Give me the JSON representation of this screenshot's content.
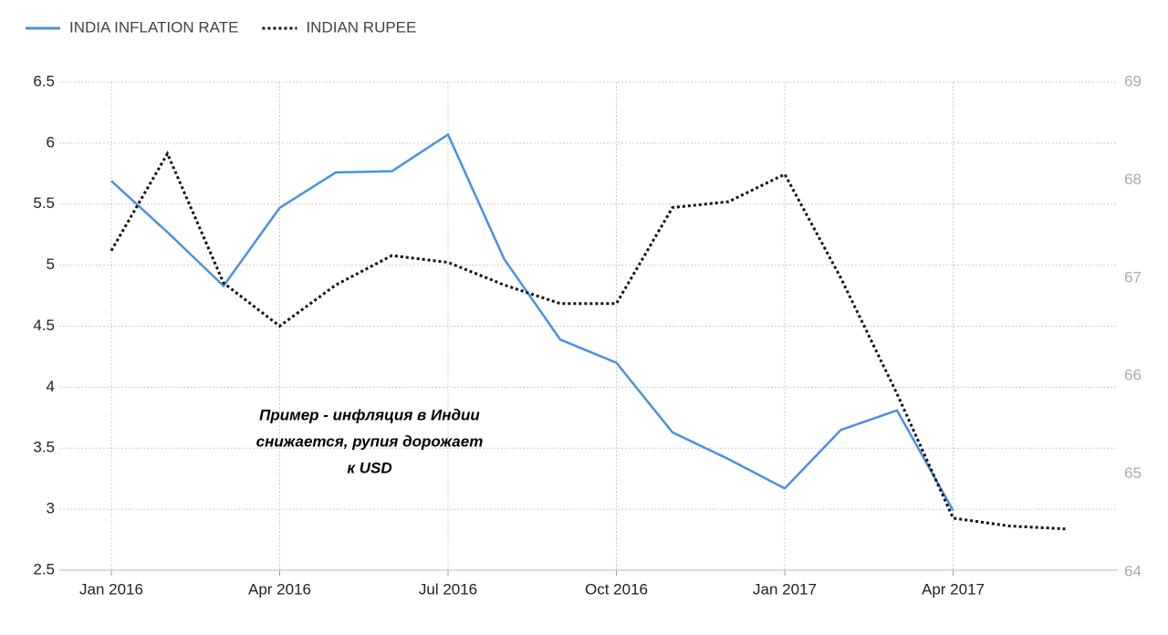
{
  "chart_data": {
    "type": "line",
    "categories": [
      "Jan 2016",
      null,
      null,
      "Apr 2016",
      null,
      null,
      "Jul 2016",
      null,
      null,
      "Oct 2016",
      null,
      null,
      "Jan 2017",
      null,
      null,
      "Apr 2017",
      null,
      null
    ],
    "series": [
      {
        "name": "INDIA INFLATION RATE",
        "color": "#4a90e2",
        "style": "solid",
        "values": [
          5.69,
          5.27,
          4.83,
          5.47,
          5.76,
          5.77,
          6.07,
          5.05,
          4.39,
          4.2,
          3.63,
          3.41,
          3.17,
          3.65,
          3.81,
          2.99,
          null,
          null
        ]
      },
      {
        "name": "INDIAN RUPEE",
        "color": "#111111",
        "style": "dotted",
        "axis": "y2",
        "values": [
          67.28,
          68.27,
          66.95,
          66.51,
          66.93,
          67.23,
          67.16,
          66.93,
          66.74,
          66.74,
          67.72,
          67.78,
          68.06,
          67.0,
          65.82,
          64.55,
          64.47,
          64.44
        ]
      }
    ],
    "ylim": [
      2.5,
      6.5
    ],
    "yticks": [
      2.5,
      3,
      3.5,
      4,
      4.5,
      5,
      5.5,
      6,
      6.5
    ],
    "y2lim": [
      64,
      69
    ],
    "y2ticks": [
      64,
      65,
      66,
      67,
      68,
      69
    ],
    "grid": true,
    "legend": "top-left",
    "annotations": [
      "Пример - инфляция в Индии",
      "снижается, рупия дорожает",
      "к USD"
    ]
  }
}
